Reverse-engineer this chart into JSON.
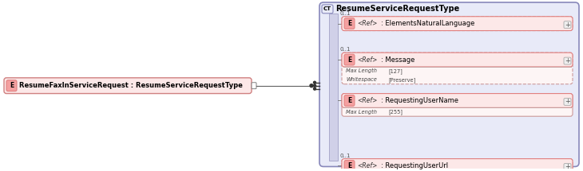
{
  "left_element_text": "ResumeFaxInServiceRequest : ResumeServiceRequestType",
  "main_title_text": "ResumeServiceRequestType",
  "element_bg": "#fce8e8",
  "element_border": "#e08080",
  "element_label_bg": "#f4a0a0",
  "left_box_bg": "#fce8e8",
  "left_box_border": "#d08080",
  "main_box_bg": "#e8eaf8",
  "main_box_border": "#8888bb",
  "vbar_bg": "#d0d0e8",
  "vbar_border": "#aaaacc",
  "subtext_color": "#555555",
  "elements": [
    {
      "name": ": ElementsNaturalLanguage",
      "cardinality": "0..1",
      "dashed": true,
      "sub": []
    },
    {
      "name": ": Message",
      "cardinality": "0..1",
      "dashed": true,
      "sub": [
        {
          "key": "Max Length",
          "value": "[127]"
        },
        {
          "key": "Whitespace",
          "value": "[Preserve]"
        }
      ]
    },
    {
      "name": ": RequestingUserName",
      "cardinality": "",
      "dashed": false,
      "sub": [
        {
          "key": "Max Length",
          "value": "[255]"
        }
      ]
    },
    {
      "name": ": RequestingUserUrl",
      "cardinality": "0..1",
      "dashed": true,
      "sub": []
    }
  ]
}
